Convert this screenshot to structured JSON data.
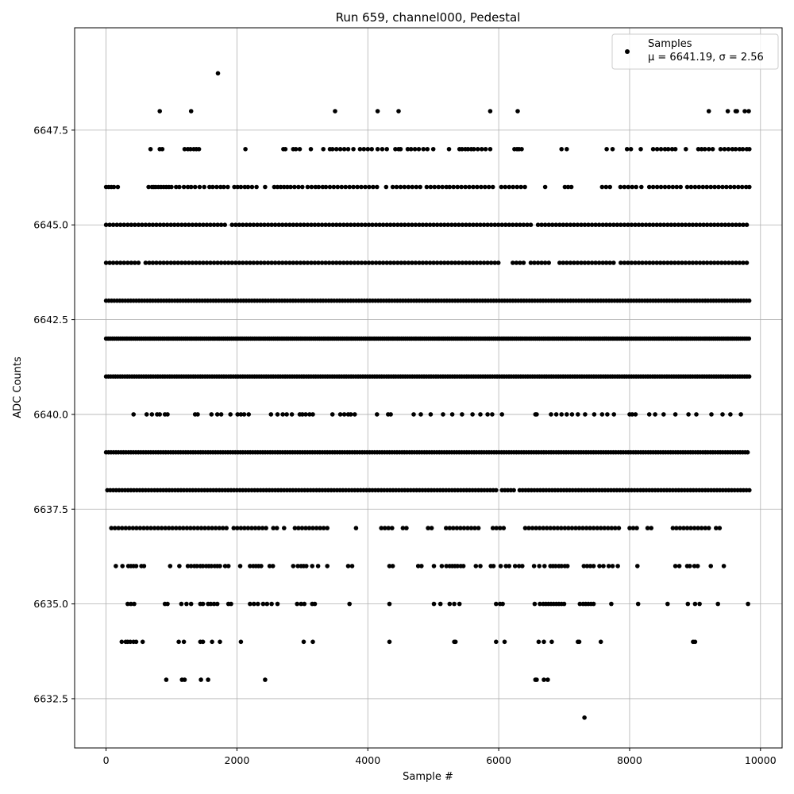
{
  "chart_data": {
    "type": "scatter",
    "title": "Run 659, channel000, Pedestal",
    "xlabel": "Sample #",
    "ylabel": "ADC Counts",
    "xlim": [
      -480,
      10330
    ],
    "ylim": [
      6631.2,
      6650.2
    ],
    "x_ticks": [
      0,
      2000,
      4000,
      6000,
      8000,
      10000
    ],
    "x_tick_labels": [
      "0",
      "2000",
      "4000",
      "6000",
      "8000",
      "10000"
    ],
    "y_ticks": [
      6632.5,
      6635.0,
      6637.5,
      6640.0,
      6642.5,
      6645.0,
      6647.5
    ],
    "y_tick_labels": [
      "6632.5",
      "6635.0",
      "6637.5",
      "6640.0",
      "6642.5",
      "6645.0",
      "6647.5"
    ],
    "grid": true,
    "legend": {
      "position": "top-right",
      "series_label": "Samples",
      "stats_label": "μ = 6641.19, σ = 2.56"
    },
    "marker_color": "#000000",
    "series": [
      {
        "name": "Samples",
        "levels": [
          {
            "y": 6649,
            "x": [
              1710
            ]
          },
          {
            "y": 6648,
            "x": [
              820,
              1300,
              3500,
              4150,
              4470,
              5870,
              6290,
              9210,
              9500,
              9620,
              9640,
              9760,
              9820
            ]
          },
          {
            "y": 6647,
            "x": [
              680,
              820,
              860,
              1200,
              1250,
              1290,
              1340,
              1380,
              1420,
              2130,
              2710,
              2740,
              2860,
              2900,
              2960,
              3130,
              3320,
              3420,
              3460,
              3520,
              3580,
              3640,
              3700,
              3780,
              3880,
              3940,
              4000,
              4060,
              4150,
              4220,
              4290,
              4420,
              4470,
              4500,
              4610,
              4660,
              4720,
              4780,
              4850,
              4910,
              5000,
              5240,
              5400,
              5440,
              5490,
              5530,
              5580,
              5620,
              5680,
              5740,
              5800,
              5870,
              6240,
              6280,
              6310,
              6350,
              6960,
              7040,
              7650,
              7740,
              7960,
              8020,
              8170,
              8360,
              8420,
              8480,
              8540,
              8590,
              8650,
              8700,
              8860,
              9050,
              9100,
              9150,
              9210,
              9270,
              9390,
              9450,
              9510,
              9570,
              9620,
              9680,
              9730,
              9790,
              9830
            ]
          },
          {
            "y": 6646,
            "x": [
              0,
              40,
              80,
              120,
              180,
              650,
              700,
              730,
              760,
              800,
              840,
              880,
              920,
              960,
              1000,
              1070,
              1120,
              1190,
              1250,
              1300,
              1360,
              1430,
              1500,
              1580,
              1630,
              1690,
              1750,
              1800,
              1860,
              1960,
              2010,
              2060,
              2120,
              2170,
              2230,
              2300,
              2430,
              2570,
              2620,
              2670,
              2720,
              2770,
              2820,
              2880,
              2940,
              3000,
              3080,
              3140,
              3200,
              3250,
              3310,
              3360,
              3420,
              3480,
              3540,
              3600,
              3660,
              3720,
              3780,
              3840,
              3900,
              3960,
              4020,
              4080,
              4140,
              4280,
              4380,
              4440,
              4500,
              4560,
              4620,
              4680,
              4740,
              4800,
              4900,
              4960,
              5020,
              5080,
              5140,
              5200,
              5250,
              5310,
              5370,
              5430,
              5490,
              5550,
              5610,
              5670,
              5730,
              5790,
              5850,
              5910,
              6040,
              6100,
              6160,
              6220,
              6280,
              6340,
              6400,
              6710,
              7010,
              7060,
              7110,
              7580,
              7640,
              7700,
              7860,
              7920,
              7980,
              8040,
              8100,
              8180,
              8300,
              8360,
              8420,
              8480,
              8540,
              8600,
              8660,
              8720,
              8780,
              8880,
              8940,
              9000,
              9060,
              9120,
              9180,
              9240,
              9300,
              9360,
              9420,
              9480,
              9540,
              9600,
              9660,
              9720,
              9780,
              9830
            ]
          },
          {
            "y": 6645,
            "step": 55,
            "from": 0,
            "to": 9830,
            "gaps": [
              [
                1860,
                1920
              ],
              [
                6520,
                6560
              ]
            ]
          },
          {
            "y": 6644,
            "step": 55,
            "from": 0,
            "to": 9830,
            "gaps": [
              [
                540,
                600
              ],
              [
                6000,
                6160
              ],
              [
                6420,
                6460
              ],
              [
                6770,
                6880
              ],
              [
                7800,
                7840
              ]
            ]
          },
          {
            "y": 6643,
            "step": 42,
            "from": 0,
            "to": 9830,
            "gaps": []
          },
          {
            "y": 6642,
            "step": 32,
            "from": 0,
            "to": 9830,
            "gaps": []
          },
          {
            "y": 6641,
            "step": 36,
            "from": 0,
            "to": 9830,
            "gaps": []
          },
          {
            "y": 6640,
            "x": [
              420,
              620,
              700,
              780,
              820,
              900,
              940,
              1360,
              1400,
              1610,
              1700,
              1760,
              1900,
              2010,
              2060,
              2110,
              2180,
              2520,
              2620,
              2700,
              2760,
              2840,
              2960,
              3000,
              3050,
              3110,
              3160,
              3460,
              3580,
              3640,
              3700,
              3740,
              3800,
              4140,
              4310,
              4350,
              4700,
              4810,
              4960,
              5150,
              5290,
              5440,
              5600,
              5720,
              5830,
              5900,
              6050,
              6560,
              6580,
              6800,
              6880,
              6960,
              7040,
              7120,
              7210,
              7320,
              7460,
              7580,
              7660,
              7760,
              8000,
              8040,
              8090,
              8300,
              8390,
              8520,
              8700,
              8900,
              9020,
              9250,
              9420,
              9540,
              9700
            ]
          },
          {
            "y": 6639,
            "step": 38,
            "from": 0,
            "to": 9830,
            "gaps": []
          },
          {
            "y": 6638,
            "step": 45,
            "from": 20,
            "to": 9830,
            "gaps": [
              [
                5980,
                6020
              ],
              [
                6250,
                6300
              ]
            ]
          },
          {
            "y": 6637,
            "step": 55,
            "from": 80,
            "to": 9400,
            "gaps": [
              [
                1880,
                1930
              ],
              [
                2480,
                2520
              ],
              [
                2640,
                2700
              ],
              [
                2740,
                2850
              ],
              [
                3430,
                3600
              ],
              [
                3650,
                3800
              ],
              [
                3840,
                4200
              ],
              [
                4400,
                4530
              ],
              [
                4600,
                4900
              ],
              [
                5000,
                5150
              ],
              [
                5700,
                5870
              ],
              [
                6120,
                6380
              ],
              [
                7870,
                7990
              ],
              [
                8130,
                8230
              ],
              [
                8360,
                8630
              ],
              [
                9230,
                9280
              ]
            ]
          },
          {
            "y": 6636,
            "x": [
              150,
              250,
              340,
              380,
              420,
              460,
              540,
              580,
              980,
              1120,
              1250,
              1300,
              1350,
              1390,
              1440,
              1480,
              1530,
              1570,
              1610,
              1660,
              1700,
              1740,
              1820,
              1870,
              2050,
              2200,
              2250,
              2290,
              2330,
              2370,
              2500,
              2550,
              2860,
              2930,
              2980,
              3020,
              3060,
              3150,
              3240,
              3380,
              3700,
              3760,
              4330,
              4380,
              4770,
              4820,
              5010,
              5130,
              5200,
              5250,
              5290,
              5330,
              5370,
              5420,
              5460,
              5650,
              5720,
              5880,
              5920,
              6030,
              6110,
              6160,
              6250,
              6310,
              6360,
              6540,
              6620,
              6700,
              6790,
              6830,
              6870,
              6920,
              6960,
              7010,
              7050,
              7300,
              7350,
              7400,
              7450,
              7540,
              7600,
              7680,
              7740,
              7820,
              8120,
              8700,
              8760,
              8880,
              8920,
              8990,
              9040,
              9240,
              9440
            ]
          },
          {
            "y": 6635,
            "x": [
              330,
              380,
              430,
              900,
              940,
              1150,
              1230,
              1300,
              1440,
              1480,
              1560,
              1600,
              1650,
              1700,
              1870,
              1910,
              2200,
              2260,
              2320,
              2400,
              2460,
              2530,
              2620,
              2920,
              2980,
              3030,
              3150,
              3190,
              3720,
              4330,
              5010,
              5110,
              5250,
              5320,
              5400,
              5960,
              6020,
              6060,
              6550,
              6630,
              6680,
              6720,
              6760,
              6800,
              6840,
              6880,
              6920,
              6960,
              7000,
              7240,
              7290,
              7330,
              7370,
              7410,
              7450,
              7720,
              8130,
              8580,
              8890,
              9000,
              9070,
              9350,
              9810
            ]
          },
          {
            "y": 6634,
            "x": [
              240,
              300,
              330,
              370,
              420,
              460,
              560,
              1110,
              1190,
              1440,
              1480,
              1620,
              1740,
              2060,
              3020,
              3160,
              4330,
              5320,
              5340,
              5960,
              6090,
              6610,
              6690,
              6810,
              7210,
              7230,
              7560,
              8970,
              9000
            ]
          },
          {
            "y": 6633,
            "x": [
              920,
              1160,
              1200,
              1450,
              1560,
              2430,
              6560,
              6580,
              6690,
              6750
            ]
          },
          {
            "y": 6632,
            "x": [
              7310
            ]
          }
        ]
      }
    ]
  }
}
